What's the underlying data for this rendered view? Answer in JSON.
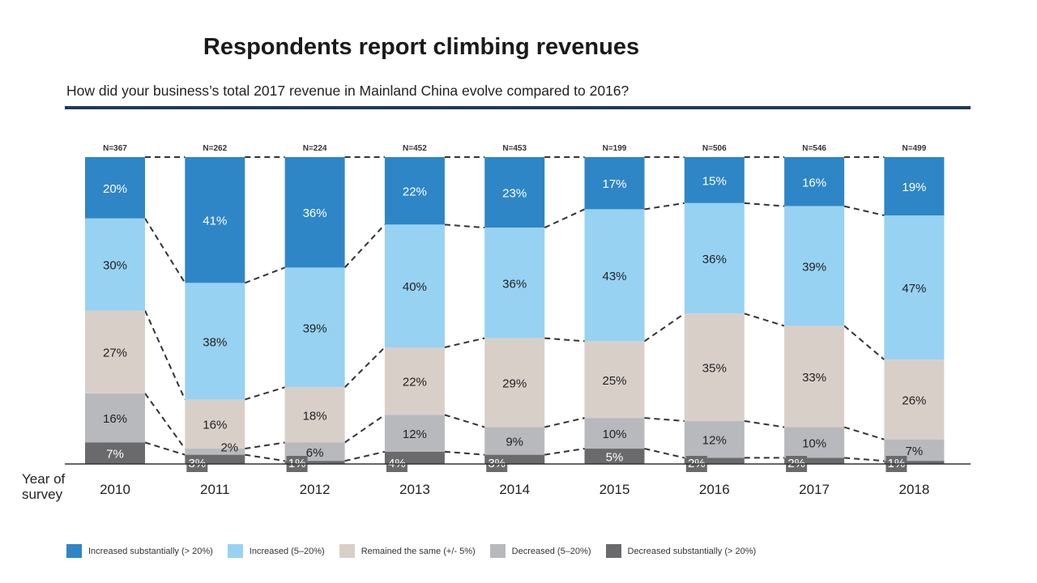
{
  "chart_data": {
    "type": "bar",
    "stacked": true,
    "title": "Respondents report climbing revenues",
    "subtitle": "How did your business’s total 2017 revenue in Mainland China evolve compared to 2016?",
    "xlabel": "Year of survey",
    "ylabel": "",
    "categories": [
      "2010",
      "2011",
      "2012",
      "2013",
      "2014",
      "2015",
      "2016",
      "2017",
      "2018"
    ],
    "sample_sizes": [
      "N=367",
      "N=262",
      "N=224",
      "N=452",
      "N=453",
      "N=199",
      "N=506",
      "N=546",
      "N=499"
    ],
    "series": [
      {
        "name": "Increased substantially (> 20%)",
        "color": "#2e86c6",
        "text_color": "#ffffff",
        "values": [
          20,
          41,
          36,
          22,
          23,
          17,
          15,
          16,
          19
        ]
      },
      {
        "name": "Increased (5–20%)",
        "color": "#97d2f2",
        "text_color": "#222222",
        "values": [
          30,
          38,
          39,
          40,
          36,
          43,
          36,
          39,
          47
        ]
      },
      {
        "name": "Remained the same (+/- 5%)",
        "color": "#d9cfc9",
        "text_color": "#222222",
        "values": [
          27,
          16,
          18,
          22,
          29,
          25,
          35,
          33,
          26
        ]
      },
      {
        "name": "Decreased (5–20%)",
        "color": "#b8b9bd",
        "text_color": "#222222",
        "values": [
          16,
          2,
          6,
          12,
          9,
          10,
          12,
          10,
          7
        ]
      },
      {
        "name": "Decreased substantially (> 20%)",
        "color": "#6a6a6c",
        "text_color": "#ffffff",
        "values": [
          7,
          3,
          1,
          4,
          3,
          5,
          2,
          2,
          1
        ]
      }
    ],
    "ylim": [
      0,
      100
    ],
    "grid": false,
    "legend_position": "bottom",
    "value_format": "{v}%"
  }
}
